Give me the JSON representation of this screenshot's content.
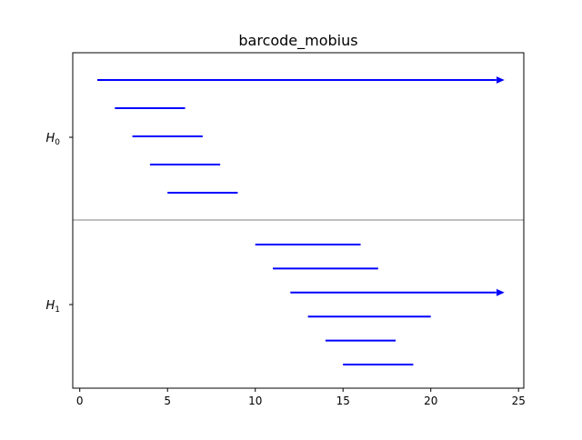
{
  "chart_data": {
    "type": "barcode",
    "title": "barcode_mobius",
    "xlabel": "",
    "ylabel": "",
    "xlim": [
      -0.4,
      25.3
    ],
    "x_ticks": [
      0,
      5,
      10,
      15,
      20,
      25
    ],
    "grid": false,
    "bar_color": "#0000ff",
    "separator_color": "#808080",
    "groups": [
      {
        "label_main": "H",
        "label_sub": "0",
        "bars": [
          {
            "birth": 1,
            "death": 24.2,
            "infinite": true
          },
          {
            "birth": 2,
            "death": 6,
            "infinite": false
          },
          {
            "birth": 3,
            "death": 7,
            "infinite": false
          },
          {
            "birth": 4,
            "death": 8,
            "infinite": false
          },
          {
            "birth": 5,
            "death": 9,
            "infinite": false
          }
        ]
      },
      {
        "label_main": "H",
        "label_sub": "1",
        "bars": [
          {
            "birth": 10,
            "death": 16,
            "infinite": false
          },
          {
            "birth": 11,
            "death": 17,
            "infinite": false
          },
          {
            "birth": 12,
            "death": 24.2,
            "infinite": true
          },
          {
            "birth": 13,
            "death": 20,
            "infinite": false
          },
          {
            "birth": 14,
            "death": 18,
            "infinite": false
          },
          {
            "birth": 15,
            "death": 19,
            "infinite": false
          }
        ]
      }
    ]
  }
}
